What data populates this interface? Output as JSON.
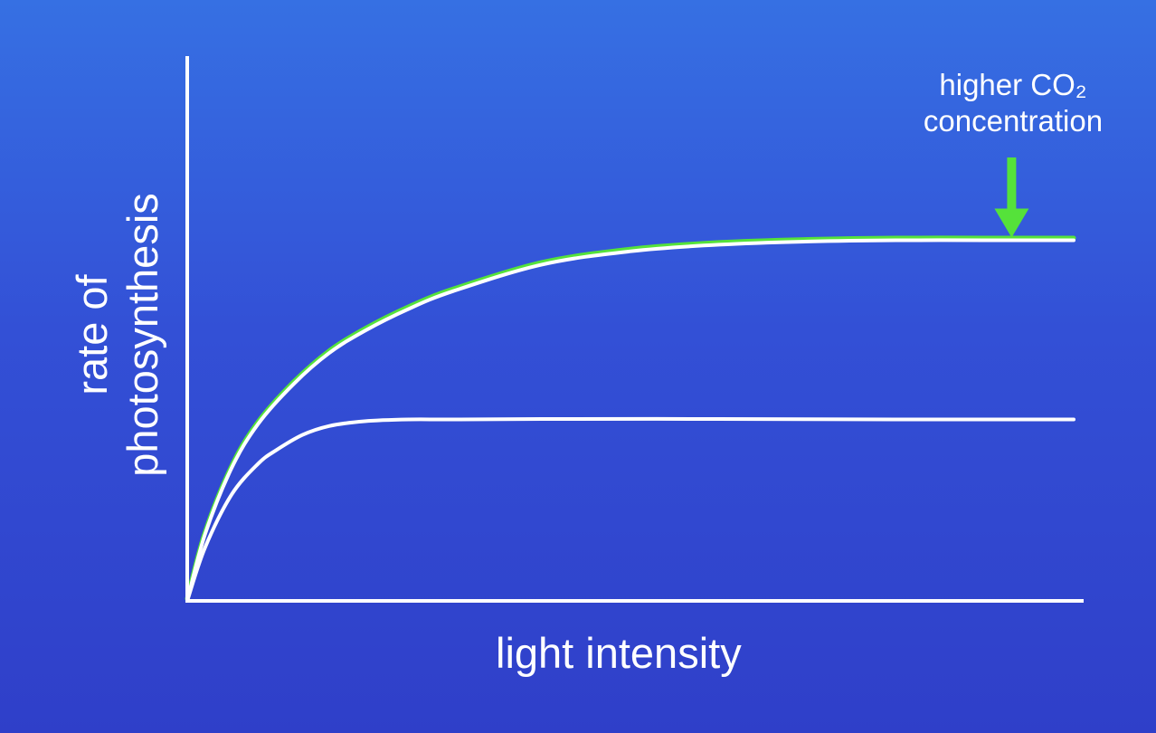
{
  "chart_data": {
    "type": "line",
    "title": "",
    "xlabel": "light intensity",
    "ylabel_lines": [
      "rate of",
      "photosynthesis"
    ],
    "xlim": [
      0,
      100
    ],
    "ylim": [
      0,
      100
    ],
    "grid": false,
    "legend": "none",
    "series": [
      {
        "color": "#ffffff",
        "x": [
          0,
          2,
          5,
          8,
          12,
          16,
          20,
          25,
          30,
          40,
          50,
          60,
          70,
          80,
          90,
          100
        ],
        "y": [
          0,
          15,
          30,
          40,
          49,
          56,
          61,
          66,
          70,
          76,
          79,
          80.5,
          81.2,
          81.5,
          81.5,
          81.5
        ]
      },
      {
        "color": "#ffffff",
        "x": [
          0,
          2,
          5,
          8,
          10,
          13,
          16,
          20,
          25,
          30,
          40,
          60,
          80,
          100
        ],
        "y": [
          0,
          12,
          24,
          31,
          34,
          37.5,
          39.5,
          40.6,
          41,
          41,
          41.1,
          41.1,
          41,
          41
        ]
      }
    ],
    "highlight": {
      "series_index": 0,
      "color": "#55e23a"
    },
    "annotations": [
      {
        "text_lines": [
          "higher CO₂",
          "concentration"
        ],
        "arrow_color": "#55e23a",
        "target": {
          "x": 93,
          "y": 81.5
        }
      }
    ]
  }
}
